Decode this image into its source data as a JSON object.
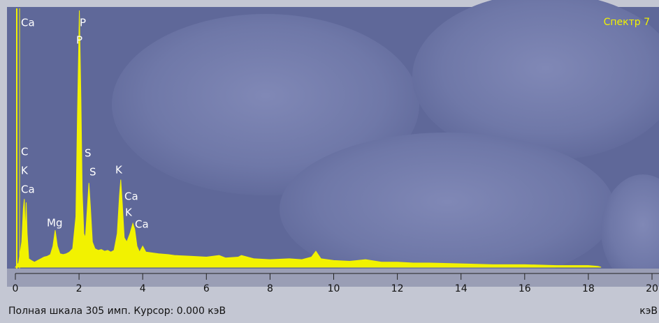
{
  "chart_data": {
    "type": "area",
    "title": "Спектр 7",
    "x_label": "кэВ",
    "status": "Полная шкала 305 имп.  Курсор: 0.000 кэВ",
    "annotations": [
      "Ca",
      "P",
      "P",
      "C",
      "K",
      "Ca",
      "Mg",
      "S",
      "S",
      "K",
      "Ca",
      "K",
      "Ca"
    ],
    "color": "#f2f200",
    "xlim": [
      0,
      20
    ],
    "ylim": [
      0,
      305
    ],
    "xticks": [
      0,
      2,
      4,
      6,
      8,
      10,
      12,
      14,
      16,
      18,
      20
    ],
    "x": [
      0.0,
      0.1,
      0.2,
      0.25,
      0.28,
      0.31,
      0.34,
      0.37,
      0.42,
      0.5,
      0.6,
      0.7,
      0.8,
      0.9,
      1.0,
      1.1,
      1.18,
      1.25,
      1.32,
      1.4,
      1.5,
      1.6,
      1.7,
      1.8,
      1.9,
      1.95,
      2.01,
      2.06,
      2.1,
      2.15,
      2.2,
      2.26,
      2.31,
      2.36,
      2.42,
      2.5,
      2.6,
      2.7,
      2.8,
      2.9,
      3.0,
      3.1,
      3.2,
      3.27,
      3.31,
      3.36,
      3.42,
      3.5,
      3.6,
      3.69,
      3.75,
      3.82,
      3.9,
      4.0,
      4.1,
      4.3,
      4.5,
      4.8,
      5.0,
      5.5,
      6.0,
      6.4,
      6.6,
      7.0,
      7.1,
      7.5,
      8.0,
      8.6,
      9.0,
      9.3,
      9.44,
      9.6,
      10.0,
      10.5,
      11.0,
      11.5,
      12.0,
      12.5,
      13.0,
      14.0,
      15.0,
      16.0,
      17.0,
      18.0,
      18.3,
      18.4
    ],
    "values": [
      0,
      5,
      30,
      70,
      81,
      40,
      77,
      40,
      10,
      8,
      6,
      8,
      10,
      12,
      13,
      15,
      25,
      44,
      25,
      16,
      15,
      16,
      18,
      22,
      60,
      180,
      305,
      200,
      90,
      40,
      35,
      70,
      100,
      70,
      30,
      22,
      20,
      21,
      19,
      20,
      18,
      20,
      40,
      85,
      104,
      75,
      35,
      30,
      40,
      52,
      45,
      25,
      18,
      25,
      18,
      17,
      16,
      15,
      14,
      13,
      12,
      14,
      11,
      12,
      14,
      10,
      9,
      10,
      9,
      12,
      19,
      10,
      8,
      7,
      9,
      6,
      6,
      5,
      5,
      4,
      3,
      3,
      2,
      2,
      1,
      0
    ]
  }
}
